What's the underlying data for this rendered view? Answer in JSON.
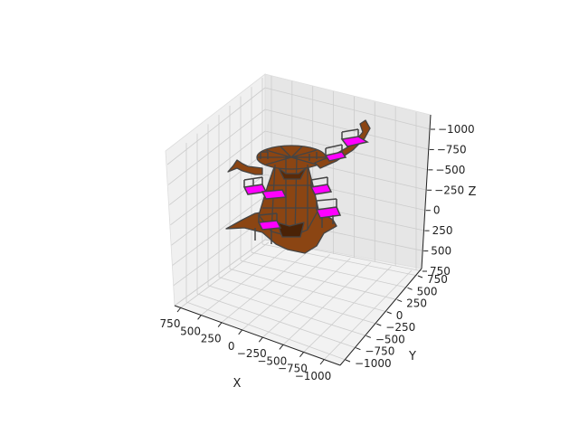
{
  "chart_data": {
    "type": "surface3d",
    "title": "",
    "xlabel": "X",
    "ylabel": "Y",
    "zlabel": "Z",
    "xlim": [
      -1000,
      750
    ],
    "ylim": [
      -1000,
      750
    ],
    "zlim": [
      -1100,
      750
    ],
    "x_ticks": [
      "750",
      "500",
      "250",
      "0",
      "−250",
      "−500",
      "−750",
      "−1000"
    ],
    "y_ticks": [
      "750",
      "500",
      "250",
      "0",
      "−250",
      "−500",
      "−750",
      "−1000"
    ],
    "z_ticks": [
      "−1000",
      "−750",
      "−500",
      "−250",
      "0",
      "250",
      "500",
      "750"
    ],
    "grid": true,
    "colors": {
      "surface": "#8B4513",
      "edge": "#444444",
      "platform": "#ff00ff",
      "pane_left": "#f0f0f0",
      "pane_back": "#e8e8e8",
      "pane_floor": "#f2f2f2",
      "grid": "#cccccc"
    }
  }
}
